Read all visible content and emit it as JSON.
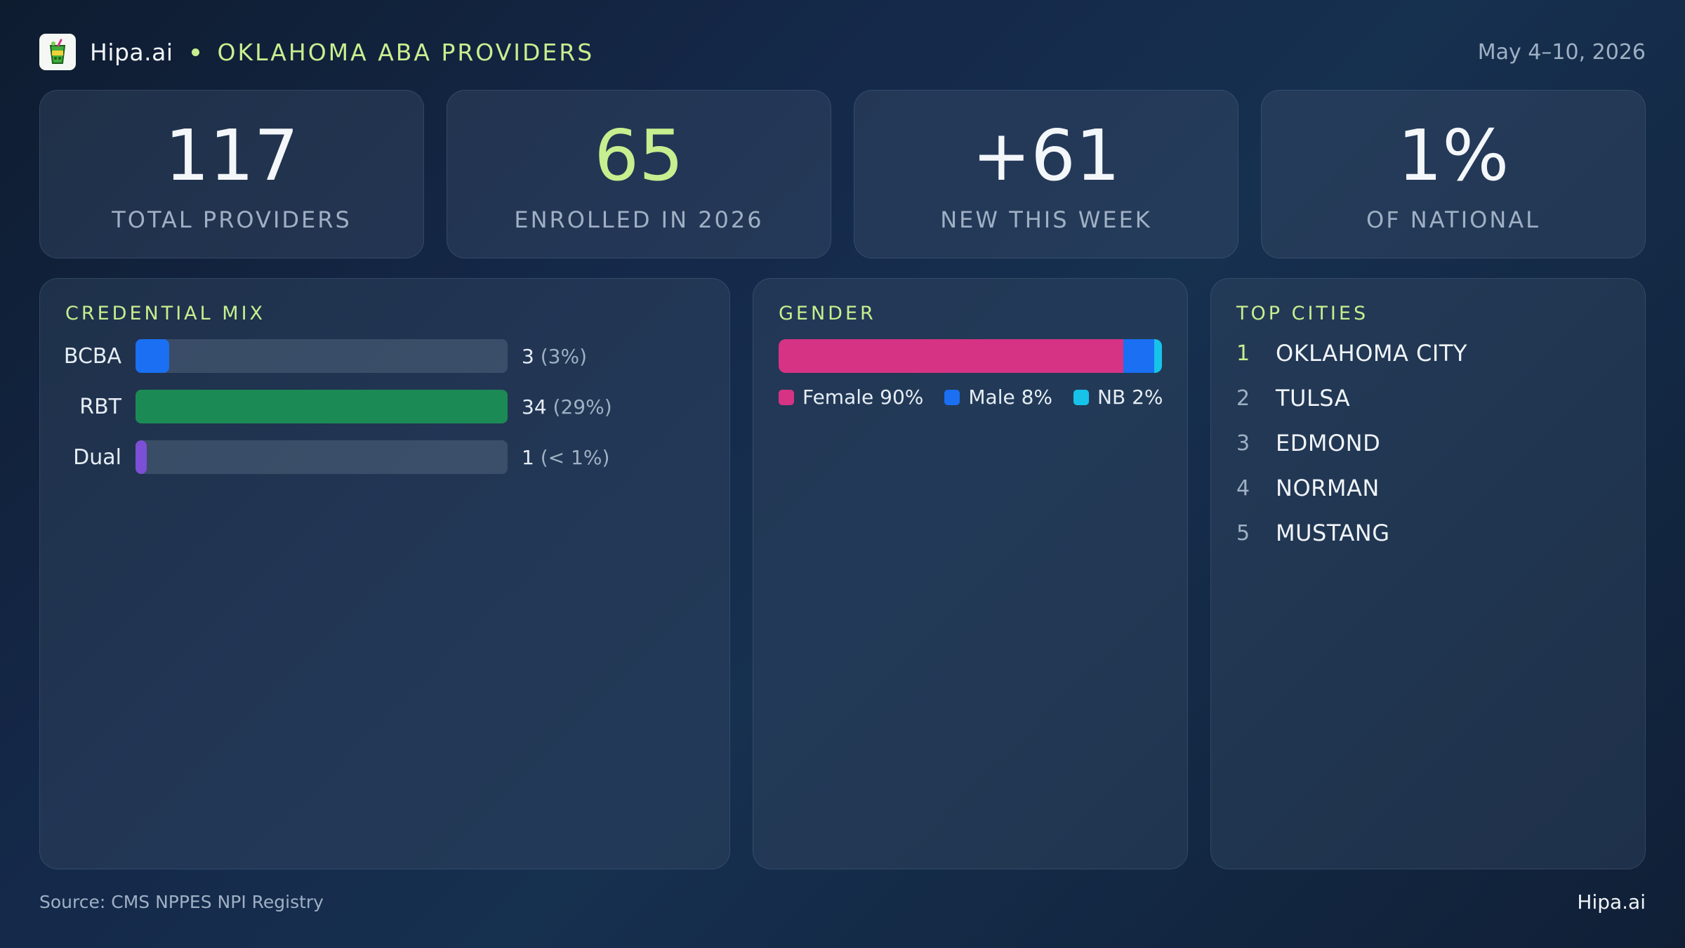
{
  "header": {
    "brand": "Hipa.ai",
    "logo_icon": "drink-cup-icon",
    "title": "OKLAHOMA ABA PROVIDERS",
    "date_range": "May 4–10, 2026"
  },
  "kpis": [
    {
      "value": "117",
      "label": "TOTAL PROVIDERS"
    },
    {
      "value": "65",
      "label": "ENROLLED IN 2026"
    },
    {
      "value": "+61",
      "label": "NEW THIS WEEK"
    },
    {
      "value": "1%",
      "label": "OF NATIONAL"
    }
  ],
  "credential_mix": {
    "title": "CREDENTIAL MIX",
    "rows": [
      {
        "label": "BCBA",
        "count": "3",
        "pct": "(3%)",
        "fill": 0.09,
        "color": "#1a6ff2"
      },
      {
        "label": "RBT",
        "count": "34",
        "pct": "(29%)",
        "fill": 1.0,
        "color": "#1c8a55"
      },
      {
        "label": "Dual",
        "count": "1",
        "pct": "(< 1%)",
        "fill": 0.03,
        "color": "#7b4fd6"
      }
    ]
  },
  "gender": {
    "title": "GENDER",
    "segments": [
      {
        "label": "Female 90%",
        "share": 90,
        "color": "#d63384"
      },
      {
        "label": "Male 8%",
        "share": 8,
        "color": "#1a6ff2"
      },
      {
        "label": "NB 2%",
        "share": 2,
        "color": "#17c3e8"
      }
    ]
  },
  "top_cities": {
    "title": "TOP CITIES",
    "items": [
      {
        "rank": "1",
        "name": "OKLAHOMA CITY"
      },
      {
        "rank": "2",
        "name": "TULSA"
      },
      {
        "rank": "3",
        "name": "EDMOND"
      },
      {
        "rank": "4",
        "name": "NORMAN"
      },
      {
        "rank": "5",
        "name": "MUSTANG"
      }
    ]
  },
  "footer": {
    "source": "Source: CMS NPPES NPI Registry",
    "brand": "Hipa.ai"
  }
}
